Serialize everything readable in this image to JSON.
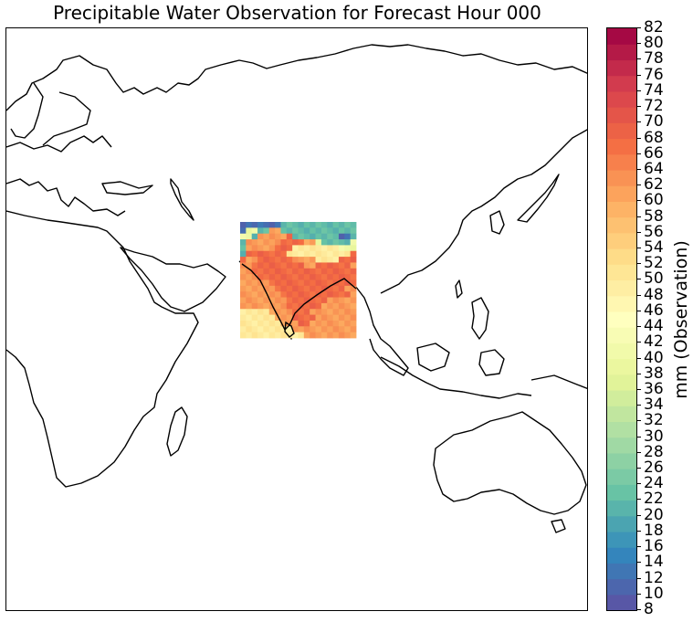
{
  "title": "Precipitable Water Observation for Forecast Hour 000",
  "colorbar": {
    "label": "mm (Observation)",
    "min": 8,
    "max": 82,
    "step": 2,
    "colormap": "Spectral_r",
    "ticks": [
      "8",
      "10",
      "12",
      "14",
      "16",
      "18",
      "20",
      "22",
      "24",
      "26",
      "28",
      "30",
      "32",
      "34",
      "36",
      "38",
      "40",
      "42",
      "44",
      "46",
      "48",
      "50",
      "52",
      "54",
      "56",
      "58",
      "60",
      "62",
      "64",
      "66",
      "68",
      "70",
      "72",
      "74",
      "76",
      "78",
      "80",
      "82"
    ]
  },
  "chart_data": {
    "type": "heatmap",
    "title": "Precipitable Water Observation for Forecast Hour 000",
    "colorbar_label": "mm (Observation)",
    "value_range": [
      8,
      82
    ],
    "region": "South Asia (Indian subcontinent) observation patch on Eastern Hemisphere map",
    "grid_rows": [
      "BBBBBBBLLLLLLLLLLLLL",
      "BGGLLOOLLLLLLLLLLLLL",
      "GGLOOOOORLLLLLLLLBBL",
      "LOOOOOORRRRMOGLLLLLG",
      "LOOOOORRRYYYYYYYYGGG",
      "LRRRRRRRYYYYYYYYYYYR",
      "ROORRRRRROOOOYYYYRRR",
      "OORRRRRRRRROORRRRRRO",
      "OORRRRRRRRRRRRRRRRRR",
      "OOORRRRRRRRRRRRRRRRR",
      "OOOOORRRRRRRRRRRRRRR",
      "OOOOOORRRRRRRRRRRROO",
      "OOOOOOORRRRRRRRRRRRO",
      "OOOOOOOORRRRRRROOOOO",
      "OOOOOOOORRRRRROOOOOO",
      "YYYYYOOOORRROOOOOOOO",
      "YYYYYYOOORRRROOOOOOO",
      "YYYYYYYOOORROOOOOOOO",
      "YYYYYYYYYOOOOOOOOOOO",
      "YYYYYYYYYYYOOOOOOOOO"
    ],
    "grid_legend": {
      "B": 12,
      "L": 22,
      "G": 40,
      "Y": 50,
      "M": 58,
      "O": 62,
      "R": 68
    }
  }
}
